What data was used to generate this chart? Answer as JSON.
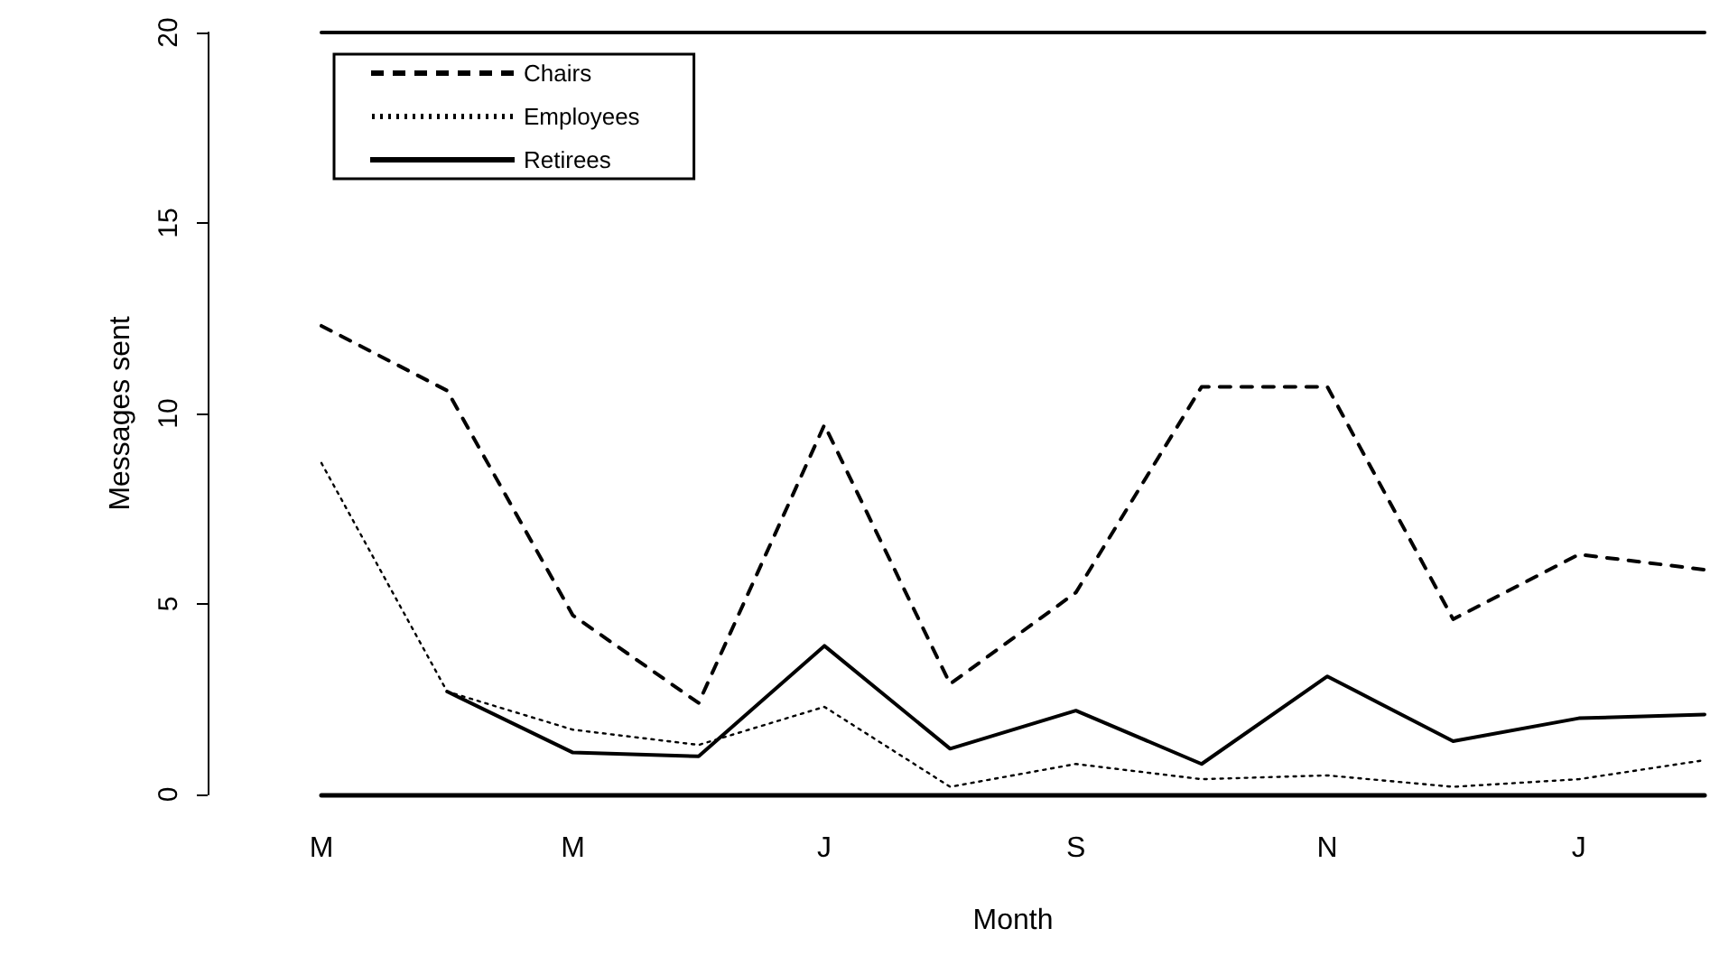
{
  "chart_data": {
    "type": "line",
    "xlabel": "Month",
    "ylabel": "Messages sent",
    "categories": [
      "M",
      null,
      "M",
      null,
      "J",
      null,
      "S",
      null,
      "N",
      null,
      "J",
      null
    ],
    "series": [
      {
        "name": "Chairs",
        "color": "#000000",
        "line_style": "dashed",
        "values": [
          12.3,
          10.6,
          4.7,
          2.4,
          9.7,
          2.9,
          5.3,
          10.7,
          10.7,
          4.6,
          6.3,
          5.9
        ]
      },
      {
        "name": "Employees",
        "color": "#000000",
        "line_style": "dotted",
        "values": [
          8.7,
          2.7,
          1.7,
          1.3,
          2.3,
          0.2,
          0.8,
          0.4,
          0.5,
          0.2,
          0.4,
          0.9
        ]
      },
      {
        "name": "Retirees",
        "color": "#000000",
        "line_style": "solid",
        "values": [
          null,
          2.7,
          1.1,
          1.0,
          3.9,
          1.2,
          2.2,
          0.8,
          3.1,
          1.4,
          2.0,
          2.1
        ]
      }
    ],
    "ylim": [
      0,
      20
    ],
    "yticks": [
      0,
      5,
      10,
      15,
      20
    ],
    "grid": false,
    "legend": "top left",
    "marker": "none"
  }
}
